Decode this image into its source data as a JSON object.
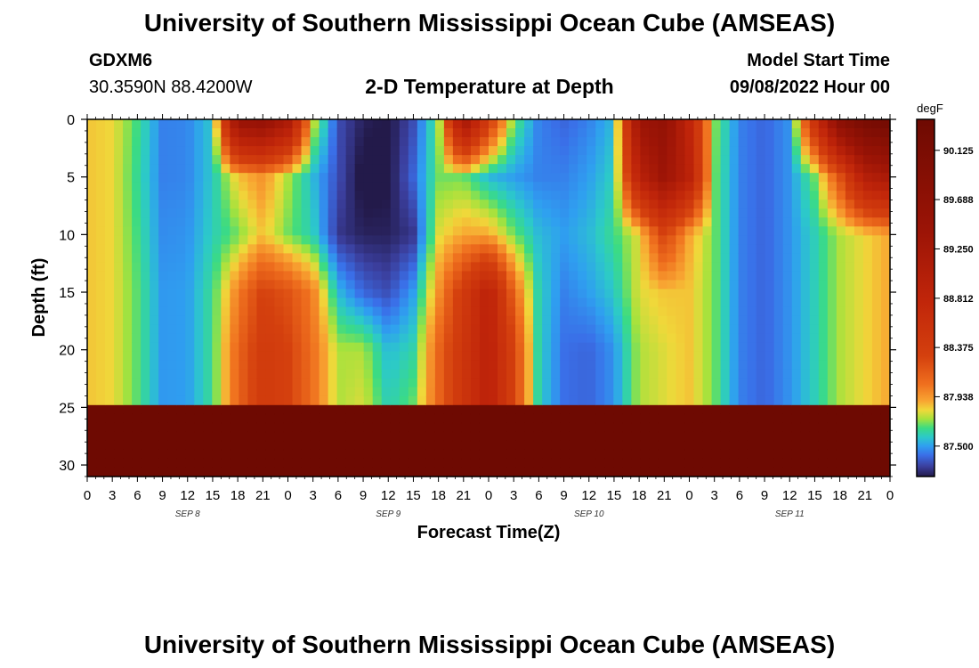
{
  "header": {
    "title": "University of Southern Mississippi Ocean Cube (AMSEAS)",
    "station_id": "GDXM6",
    "station_coords": "30.3590N  88.4200W",
    "plot_title": "2-D Temperature at Depth",
    "model_start_label": "Model Start Time",
    "model_start_value": "09/08/2022 Hour 00"
  },
  "footer": {
    "title": "University of Southern Mississippi Ocean Cube (AMSEAS)"
  },
  "chart_data": {
    "type": "heatmap",
    "title": "2-D Temperature at Depth",
    "xlabel": "Forecast Time(Z)",
    "ylabel": "Depth (ft)",
    "xlim": [
      0,
      96
    ],
    "ylim": [
      31,
      0
    ],
    "x_tick_labels": [
      "0",
      "3",
      "6",
      "9",
      "12",
      "15",
      "18",
      "21",
      "0",
      "3",
      "6",
      "9",
      "12",
      "15",
      "18",
      "21",
      "0",
      "3",
      "6",
      "9",
      "12",
      "15",
      "18",
      "21",
      "0",
      "3",
      "6",
      "9",
      "12",
      "15",
      "18",
      "21",
      "0"
    ],
    "x_tick_hours": [
      0,
      3,
      6,
      9,
      12,
      15,
      18,
      21,
      24,
      27,
      30,
      33,
      36,
      39,
      42,
      45,
      48,
      51,
      54,
      57,
      60,
      63,
      66,
      69,
      72,
      75,
      78,
      81,
      84,
      87,
      90,
      93,
      96
    ],
    "date_labels": [
      {
        "hour": 12,
        "label": "SEP 8"
      },
      {
        "hour": 36,
        "label": "SEP 9"
      },
      {
        "hour": 60,
        "label": "SEP 10"
      },
      {
        "hour": 84,
        "label": "SEP 11"
      }
    ],
    "y_ticks": [
      0,
      5,
      10,
      15,
      20,
      25,
      30
    ],
    "y_tick_labels": [
      "0",
      "5",
      "10",
      "15",
      "20",
      "25",
      "30"
    ],
    "colorbar": {
      "unit": "degF",
      "min": 87.23,
      "max": 90.4,
      "tick_labels": [
        "90.125",
        "89.688",
        "89.250",
        "88.812",
        "88.375",
        "87.938",
        "87.500"
      ],
      "tick_values": [
        90.125,
        89.688,
        89.25,
        88.812,
        88.375,
        87.938,
        87.5
      ],
      "stops": [
        {
          "v": 87.23,
          "c": "#231a4a"
        },
        {
          "v": 87.32,
          "c": "#3b3f9e"
        },
        {
          "v": 87.42,
          "c": "#3a6fe8"
        },
        {
          "v": 87.5,
          "c": "#2f9ff0"
        },
        {
          "v": 87.58,
          "c": "#2cc9c9"
        },
        {
          "v": 87.66,
          "c": "#3bdb84"
        },
        {
          "v": 87.74,
          "c": "#a5e23d"
        },
        {
          "v": 87.82,
          "c": "#f0d83a"
        },
        {
          "v": 87.9,
          "c": "#f8a532"
        },
        {
          "v": 88.05,
          "c": "#ef6f1e"
        },
        {
          "v": 88.3,
          "c": "#d4400e"
        },
        {
          "v": 88.8,
          "c": "#c0250a"
        },
        {
          "v": 89.4,
          "c": "#9c1406"
        },
        {
          "v": 90.4,
          "c": "#6e0a02"
        }
      ]
    },
    "depth_levels_ft": [
      0,
      5,
      10,
      15,
      20,
      25,
      31
    ],
    "time_hours": [
      0,
      3,
      6,
      9,
      12,
      15,
      18,
      21,
      24,
      27,
      30,
      33,
      36,
      39,
      42,
      45,
      48,
      51,
      54,
      57,
      60,
      63,
      66,
      69,
      72,
      75,
      78,
      81,
      84,
      87,
      90,
      93,
      96
    ],
    "temperature_degF": [
      [
        87.85,
        87.85,
        87.85,
        87.85,
        87.85,
        87.85
      ],
      [
        87.82,
        87.82,
        87.82,
        87.82,
        87.82,
        87.82
      ],
      [
        87.66,
        87.64,
        87.66,
        87.68,
        87.68,
        87.68
      ],
      [
        87.45,
        87.45,
        87.47,
        87.49,
        87.49,
        87.49
      ],
      [
        87.46,
        87.46,
        87.48,
        87.5,
        87.5,
        87.5
      ],
      [
        87.58,
        87.58,
        87.6,
        87.65,
        87.65,
        87.65
      ],
      [
        89.5,
        87.85,
        87.7,
        88.0,
        88.1,
        88.1
      ],
      [
        89.6,
        87.95,
        87.85,
        88.3,
        88.4,
        88.4
      ],
      [
        89.2,
        87.75,
        87.7,
        88.2,
        88.3,
        88.3
      ],
      [
        87.8,
        87.55,
        87.6,
        88.0,
        88.05,
        88.05
      ],
      [
        87.35,
        87.35,
        87.3,
        87.55,
        87.75,
        87.75
      ],
      [
        87.25,
        87.2,
        87.25,
        87.4,
        87.75,
        87.8
      ],
      [
        87.22,
        87.22,
        87.25,
        87.35,
        87.55,
        87.6
      ],
      [
        87.35,
        87.4,
        87.3,
        87.5,
        87.62,
        87.7
      ],
      [
        87.7,
        87.7,
        87.8,
        87.95,
        88.1,
        88.1
      ],
      [
        89.3,
        87.7,
        87.9,
        88.4,
        88.5,
        88.5
      ],
      [
        88.4,
        87.55,
        87.9,
        88.9,
        88.9,
        88.9
      ],
      [
        87.7,
        87.5,
        87.7,
        88.1,
        88.3,
        88.3
      ],
      [
        87.45,
        87.45,
        87.55,
        87.6,
        87.6,
        87.6
      ],
      [
        87.4,
        87.45,
        87.5,
        87.45,
        87.42,
        87.42
      ],
      [
        87.45,
        87.5,
        87.55,
        87.5,
        87.4,
        87.4
      ],
      [
        87.55,
        87.6,
        87.65,
        87.58,
        87.48,
        87.48
      ],
      [
        89.4,
        88.9,
        87.8,
        87.8,
        87.75,
        87.75
      ],
      [
        89.6,
        89.4,
        88.3,
        87.85,
        87.8,
        87.8
      ],
      [
        88.8,
        88.9,
        87.9,
        87.85,
        87.85,
        87.85
      ],
      [
        87.72,
        87.7,
        87.7,
        87.7,
        87.7,
        87.7
      ],
      [
        87.45,
        87.45,
        87.45,
        87.45,
        87.45,
        87.45
      ],
      [
        87.4,
        87.4,
        87.4,
        87.4,
        87.4,
        87.4
      ],
      [
        87.48,
        87.48,
        87.48,
        87.48,
        87.48,
        87.48
      ],
      [
        88.6,
        87.7,
        87.6,
        87.6,
        87.6,
        87.6
      ],
      [
        89.8,
        88.2,
        87.75,
        87.75,
        87.75,
        87.75
      ],
      [
        90.2,
        89.0,
        87.82,
        87.82,
        87.82,
        87.82
      ],
      [
        90.3,
        89.2,
        87.9,
        87.9,
        87.9,
        87.9
      ]
    ]
  }
}
